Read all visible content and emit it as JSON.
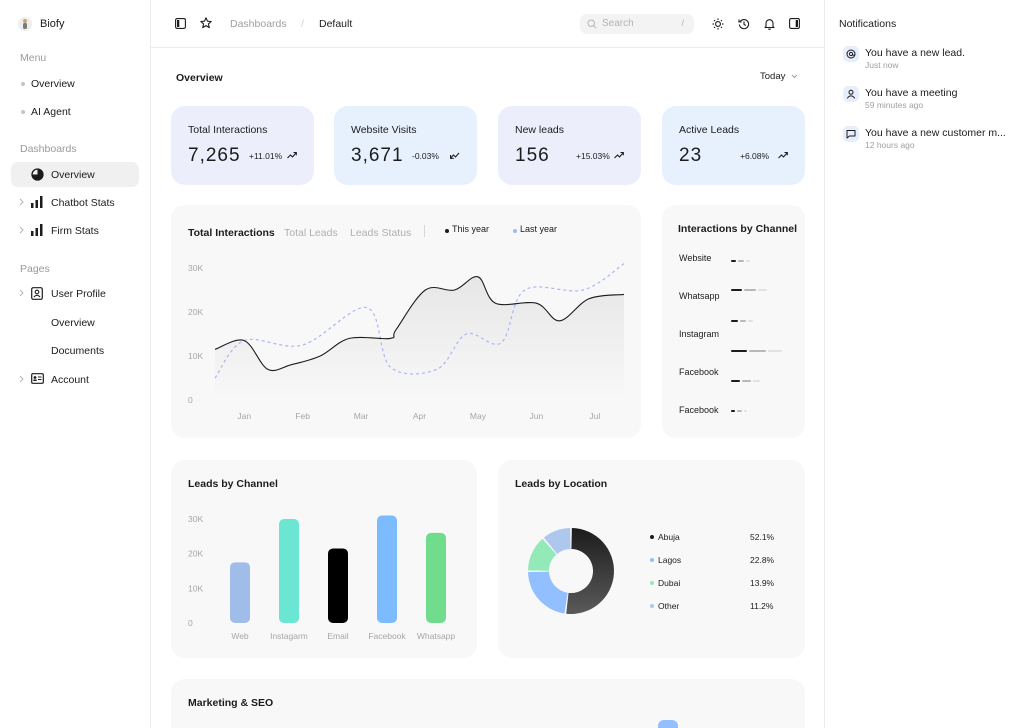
{
  "app": {
    "name": "Biofy"
  },
  "sidebar": {
    "menu_label": "Menu",
    "menu_items": [
      {
        "label": "Overview"
      },
      {
        "label": "AI Agent"
      }
    ],
    "dashboards_label": "Dashboards",
    "dashboards": [
      {
        "label": "Overview",
        "icon": "pie-chart-icon",
        "active": true
      },
      {
        "label": "Chatbot Stats",
        "icon": "bar-chart-icon"
      },
      {
        "label": "Firm Stats",
        "icon": "bar-chart-icon"
      }
    ],
    "pages_label": "Pages",
    "pages": [
      {
        "label": "User Profile",
        "icon": "id-badge-icon"
      },
      {
        "label": "Overview"
      },
      {
        "label": "Documents"
      },
      {
        "label": "Account",
        "icon": "id-card-icon"
      }
    ]
  },
  "topbar": {
    "breadcrumb": [
      "Dashboards",
      "Default"
    ],
    "separator": "/",
    "search_placeholder": "Search",
    "search_shortcut": "/",
    "icons": [
      "sidebar-toggle-icon",
      "star-icon",
      "sun-icon",
      "history-icon",
      "bell-icon",
      "sidebar-toggle-icon"
    ]
  },
  "overview": {
    "title": "Overview",
    "range": "Today",
    "stats": [
      {
        "label": "Total Interactions",
        "value": "7,265",
        "change": "+11.01%",
        "trend": "up",
        "bg": "#edeefc"
      },
      {
        "label": "Website Visits",
        "value": "3,671",
        "change": "-0.03%",
        "trend": "down",
        "bg": "#e6f1fd"
      },
      {
        "label": "New leads",
        "value": "156",
        "change": "+15.03%",
        "trend": "up",
        "bg": "#edeefc"
      },
      {
        "label": "Active Leads",
        "value": "23",
        "change": "+6.08%",
        "trend": "up",
        "bg": "#e6f1fd"
      }
    ]
  },
  "interactions_panel": {
    "tabs": [
      "Total Interactions",
      "Total Leads",
      "Leads Status"
    ],
    "legend": [
      "This year",
      "Last year"
    ]
  },
  "channel_panel": {
    "title": "Interactions by Channel",
    "rows": [
      {
        "label": "Website",
        "value": 0.3
      },
      {
        "label": "Whatsapp",
        "value": 0.55
      },
      {
        "label": "Instagram",
        "value": 0.35
      },
      {
        "label": "Facebook",
        "value": 0.75
      },
      {
        "label": "Facebook",
        "value": 0.26
      }
    ],
    "extra_row": {
      "value": 0.45
    }
  },
  "leads_channel": {
    "title": "Leads by Channel"
  },
  "leads_location": {
    "title": "Leads by Location",
    "items": [
      {
        "name": "Abuja",
        "pct": "52.1%",
        "color": "#1c1c1c"
      },
      {
        "name": "Lagos",
        "pct": "22.8%",
        "color": "#92bfff"
      },
      {
        "name": "Dubai",
        "pct": "13.9%",
        "color": "#94e9b8"
      },
      {
        "name": "Other",
        "pct": "11.2%",
        "color": "#aec7ed"
      }
    ]
  },
  "marketing": {
    "title": "Marketing & SEO"
  },
  "notifications": {
    "title": "Notifications",
    "items": [
      {
        "text": "You have a new lead.",
        "time": "Just now",
        "icon": "lead-icon"
      },
      {
        "text": "You have a meeting",
        "time": "59 minutes ago",
        "icon": "user-icon"
      },
      {
        "text": "You have a new customer m...",
        "time": "12 hours ago",
        "icon": "message-icon"
      }
    ]
  },
  "chart_data": [
    {
      "type": "line",
      "x": [
        "Jan",
        "Feb",
        "Mar",
        "Apr",
        "May",
        "Jun",
        "Jul"
      ],
      "ylim": [
        0,
        30000
      ],
      "yticks": [
        "0",
        "10K",
        "20K",
        "30K"
      ],
      "grid": false,
      "legend": "top",
      "series": [
        {
          "name": "This year",
          "color": "#1c1c1c",
          "points": [
            [
              0,
              11500
            ],
            [
              0.5,
              13500
            ],
            [
              0.9,
              7000
            ],
            [
              1.3,
              8000
            ],
            [
              1.8,
              10000
            ],
            [
              2.3,
              14000
            ],
            [
              3.0,
              14000
            ],
            [
              3.1,
              16000
            ],
            [
              3.6,
              25000
            ],
            [
              4.1,
              25000
            ],
            [
              4.5,
              28000
            ],
            [
              4.8,
              22000
            ],
            [
              5.5,
              22000
            ],
            [
              5.9,
              18000
            ],
            [
              6.4,
              23000
            ],
            [
              7.0,
              24000
            ]
          ]
        },
        {
          "name": "Last year",
          "color": "#a9b5f5",
          "points": [
            [
              0,
              5000
            ],
            [
              0.5,
              13500
            ],
            [
              1.5,
              12500
            ],
            [
              2.6,
              21000
            ],
            [
              3.0,
              7500
            ],
            [
              3.8,
              7000
            ],
            [
              4.3,
              15000
            ],
            [
              4.9,
              13000
            ],
            [
              5.3,
              25000
            ],
            [
              6.3,
              25000
            ],
            [
              7.0,
              31000
            ]
          ]
        }
      ]
    },
    {
      "type": "bar",
      "title": "Leads by Channel",
      "categories": [
        "Web",
        "Instagarm",
        "Email",
        "Facebook",
        "Whatsapp"
      ],
      "values": [
        17500,
        30000,
        21500,
        31000,
        26000
      ],
      "colors": [
        "#a0bce8",
        "#6be6d3",
        "#000000",
        "#7dbbff",
        "#71dd8c"
      ],
      "ylim": [
        0,
        30000
      ],
      "yticks": [
        "0",
        "10K",
        "20K",
        "30K"
      ]
    },
    {
      "type": "pie",
      "title": "Leads by Location",
      "labels": [
        "Abuja",
        "Lagos",
        "Dubai",
        "Other"
      ],
      "values": [
        52.1,
        22.8,
        13.9,
        11.2
      ],
      "colors": [
        "#1c1c1c",
        "#92bfff",
        "#94e9b8",
        "#aec7ed"
      ]
    }
  ]
}
